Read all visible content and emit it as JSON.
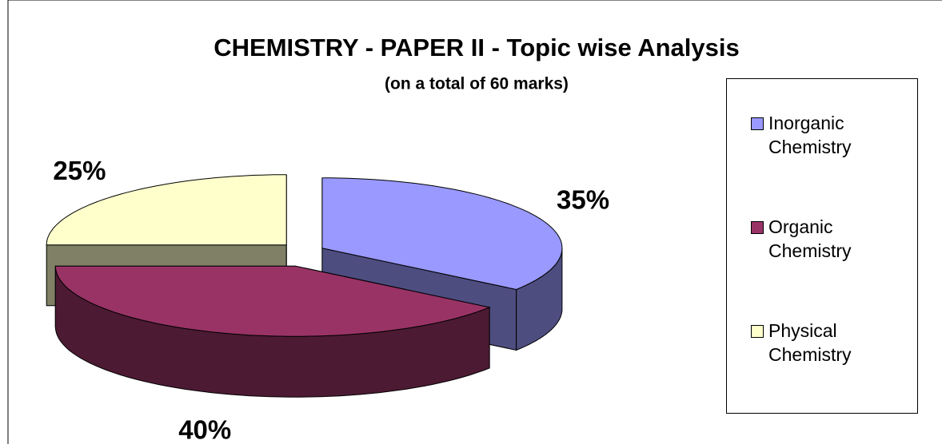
{
  "chart_data": {
    "type": "pie",
    "title": "CHEMISTRY - PAPER II - Topic wise Analysis",
    "subtitle": "(on a total of 60 marks)",
    "categories": [
      "Inorganic Chemistry",
      "Organic Chemistry",
      "Physical Chemistry"
    ],
    "values": [
      35,
      40,
      25
    ],
    "value_labels": [
      "35%",
      "40%",
      "25%"
    ],
    "colors": [
      "#9999ff",
      "#993366",
      "#ffffcc"
    ],
    "legend": "right"
  }
}
